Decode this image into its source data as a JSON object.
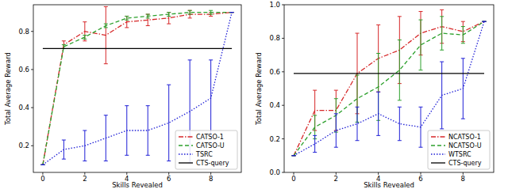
{
  "chart_data": [
    {
      "type": "line",
      "x_label": "Skills Revealed",
      "y_label": "Total Average Reward",
      "x": [
        0,
        1,
        2,
        3,
        4,
        5,
        6,
        7,
        8,
        9
      ],
      "xlim": [
        -0.45,
        9.45
      ],
      "xticks": [
        0,
        2,
        4,
        6,
        8
      ],
      "ylim": [
        0.06,
        0.94
      ],
      "yticks": [
        0.2,
        0.4,
        0.6,
        0.8
      ],
      "legend": "lower right",
      "grid": false,
      "series": [
        {
          "name": "CATSO-1",
          "color": "#d62728",
          "line_style": "dashdot",
          "values": [
            0.1,
            0.73,
            0.8,
            0.78,
            0.85,
            0.86,
            0.87,
            0.89,
            0.89,
            0.9
          ],
          "errors": [
            0,
            0.02,
            0.05,
            0.15,
            0.03,
            0.03,
            0.03,
            0.02,
            0.01,
            0
          ]
        },
        {
          "name": "CATSO-U",
          "color": "#2ca02c",
          "line_style": "dashed",
          "values": [
            0.1,
            0.72,
            0.77,
            0.83,
            0.87,
            0.88,
            0.89,
            0.9,
            0.9,
            0.9
          ],
          "errors": [
            0,
            0.01,
            0.01,
            0.01,
            0.01,
            0.01,
            0.01,
            0.01,
            0.01,
            0
          ]
        },
        {
          "name": "TSRC",
          "color": "#1f1fd6",
          "line_style": "dotted",
          "values": [
            0.1,
            0.18,
            0.2,
            0.24,
            0.28,
            0.28,
            0.32,
            0.38,
            0.45,
            0.9
          ],
          "errors": [
            0,
            0.05,
            0.08,
            0.12,
            0.13,
            0.13,
            0.2,
            0.27,
            0.2,
            0
          ]
        },
        {
          "name": "CTS-query",
          "color": "#000000",
          "line_style": "solid",
          "values": [
            0.71,
            0.71,
            0.71,
            0.71,
            0.71,
            0.71,
            0.71,
            0.71,
            0.71,
            0.71
          ]
        }
      ]
    },
    {
      "type": "line",
      "x_label": "Skills Revealed",
      "y_label": "Total Average Reward",
      "x": [
        0,
        1,
        2,
        3,
        4,
        5,
        6,
        7,
        8,
        9
      ],
      "xlim": [
        -0.45,
        9.45
      ],
      "xticks": [
        0,
        2,
        4,
        6,
        8
      ],
      "ylim": [
        0,
        1
      ],
      "yticks": [
        {
          "value": 0,
          "label": "0.0"
        },
        0.2,
        0.4,
        0.6,
        0.8,
        {
          "value": 1,
          "label": "1.0"
        }
      ],
      "legend": "lower right",
      "grid": false,
      "series": [
        {
          "name": "NCATSO-1",
          "color": "#d62728",
          "line_style": "dashdot",
          "values": [
            0.1,
            0.37,
            0.37,
            0.59,
            0.68,
            0.73,
            0.83,
            0.87,
            0.84,
            0.9
          ],
          "errors": [
            0,
            0.12,
            0.12,
            0.24,
            0.2,
            0.2,
            0.13,
            0.1,
            0.06,
            0
          ]
        },
        {
          "name": "NCATSO-U",
          "color": "#2ca02c",
          "line_style": "dashed",
          "values": [
            0.1,
            0.27,
            0.34,
            0.44,
            0.51,
            0.61,
            0.76,
            0.83,
            0.82,
            0.9
          ],
          "errors": [
            0,
            0.07,
            0.1,
            0.14,
            0.2,
            0.18,
            0.15,
            0.1,
            0.05,
            0
          ]
        },
        {
          "name": "WTSRC",
          "color": "#1f1fd6",
          "line_style": "dotted",
          "values": [
            0.1,
            0.17,
            0.25,
            0.29,
            0.35,
            0.29,
            0.27,
            0.46,
            0.5,
            0.9
          ],
          "errors": [
            0,
            0.05,
            0.1,
            0.1,
            0.13,
            0.1,
            0.12,
            0.2,
            0.18,
            0
          ]
        },
        {
          "name": "CTS-query",
          "color": "#000000",
          "line_style": "solid",
          "values": [
            0.59,
            0.59,
            0.59,
            0.59,
            0.59,
            0.59,
            0.59,
            0.59,
            0.59,
            0.59
          ]
        }
      ]
    }
  ]
}
